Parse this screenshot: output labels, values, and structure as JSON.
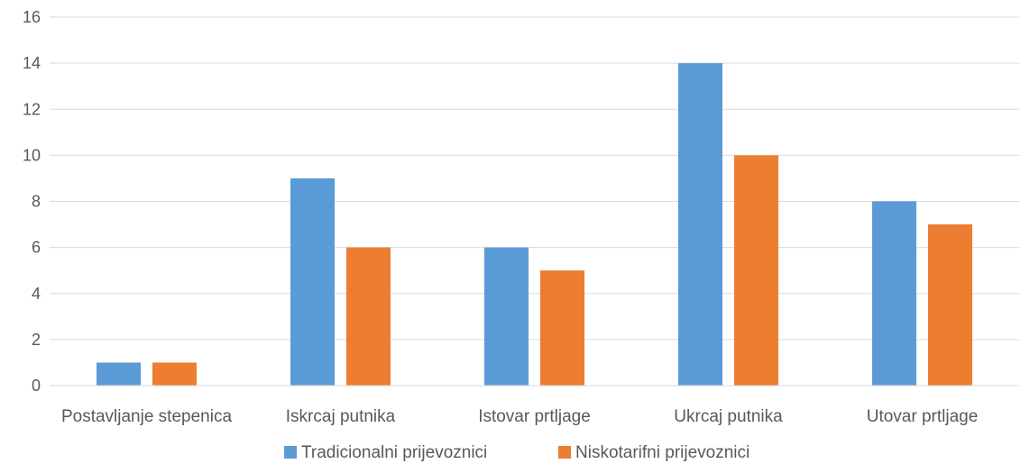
{
  "chart_data": {
    "type": "bar",
    "title": "",
    "xlabel": "",
    "ylabel": "",
    "ylim": [
      0,
      16
    ],
    "yticks": [
      0,
      2,
      4,
      6,
      8,
      10,
      12,
      14,
      16
    ],
    "ytick_labels": [
      "0",
      "2",
      "4",
      "6",
      "8",
      "10",
      "12",
      "14",
      "16"
    ],
    "grid": true,
    "legend_position": "bottom",
    "categories": [
      "Postavljanje stepenica",
      "Iskrcaj putnika",
      "Istovar prtljage",
      "Ukrcaj putnika",
      "Utovar prtljage"
    ],
    "series": [
      {
        "name": "Tradicionalni prijevoznici",
        "color": "#5b9bd5",
        "values": [
          1,
          9,
          6,
          14,
          8
        ]
      },
      {
        "name": "Niskotarifni prijevoznici",
        "color": "#ed7d31",
        "values": [
          1,
          6,
          5,
          10,
          7
        ]
      }
    ]
  }
}
